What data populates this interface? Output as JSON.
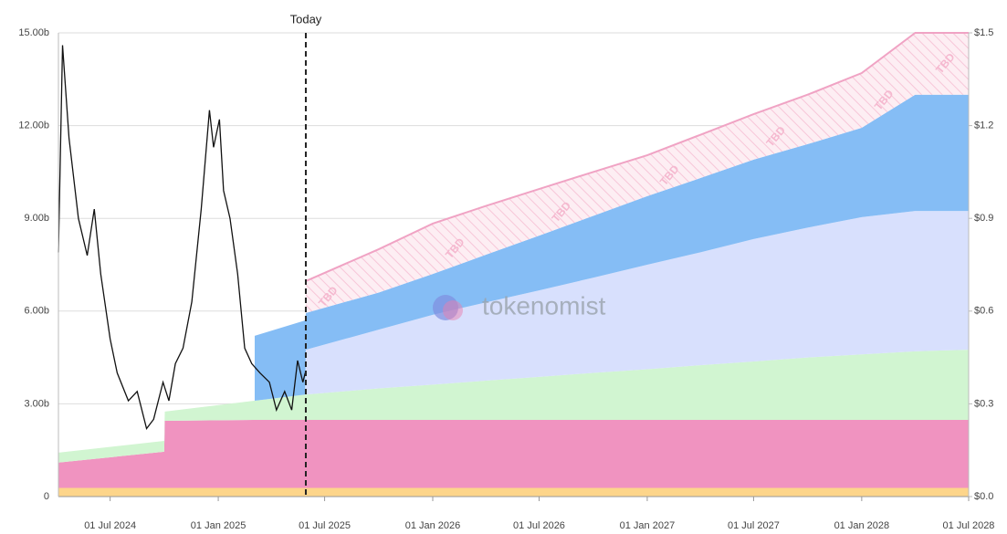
{
  "chart_data": {
    "type": "area",
    "stacked": true,
    "x": [
      "2024-04-04",
      "2024-10-01",
      "2024-10-02",
      "2025-03-03",
      "2025-03-04",
      "2025-05-29",
      "2025-05-30",
      "2025-10-01",
      "2026-01-01",
      "2026-04-01",
      "2026-07-01",
      "2026-10-01",
      "2027-01-01",
      "2027-04-01",
      "2027-07-01",
      "2027-10-01",
      "2028-01-01",
      "2028-04-01",
      "2028-07-01"
    ],
    "series": [
      {
        "color": "#fdd58a",
        "values": [
          0.28,
          0.28,
          0.28,
          0.28,
          0.28,
          0.28,
          0.28,
          0.28,
          0.28,
          0.28,
          0.28,
          0.28,
          0.28,
          0.28,
          0.28,
          0.28,
          0.28,
          0.28,
          0.28
        ]
      },
      {
        "color": "#f093c0",
        "values": [
          0.82,
          1.17,
          2.17,
          2.2,
          2.2,
          2.2,
          2.2,
          2.2,
          2.2,
          2.2,
          2.2,
          2.2,
          2.2,
          2.2,
          2.2,
          2.2,
          2.2,
          2.2,
          2.2
        ]
      },
      {
        "color": "#d1f5d1",
        "values": [
          0.32,
          0.35,
          0.3,
          0.62,
          0.62,
          0.82,
          0.82,
          1.02,
          1.14,
          1.27,
          1.39,
          1.52,
          1.64,
          1.77,
          1.89,
          2.02,
          2.12,
          2.22,
          2.27
        ]
      },
      {
        "color": "#d8e0fd",
        "values": [
          null,
          null,
          null,
          null,
          null,
          null,
          1.45,
          1.9,
          2.26,
          2.53,
          2.8,
          3.08,
          3.38,
          3.65,
          3.96,
          4.2,
          4.44,
          4.54,
          4.49
        ]
      },
      {
        "color": "#85bdf5",
        "values": [
          null,
          null,
          null,
          null,
          2.1,
          2.4,
          1.19,
          1.2,
          1.32,
          1.54,
          1.77,
          2.0,
          2.22,
          2.4,
          2.57,
          2.7,
          2.89,
          3.76,
          3.76
        ]
      },
      {
        "color": "#fde6ee",
        "pattern": "hatch",
        "stroke": "#f0a3c4",
        "values": [
          null,
          null,
          null,
          null,
          null,
          null,
          1.03,
          1.4,
          1.63,
          1.58,
          1.51,
          1.42,
          1.32,
          1.4,
          1.47,
          1.6,
          1.77,
          2.0,
          2.0
        ]
      },
      {
        "type": "line",
        "axis": "y2",
        "color": "#111111",
        "x": [
          "2024-04-04",
          "2024-04-11",
          "2024-04-22",
          "2024-05-08",
          "2024-05-23",
          "2024-06-04",
          "2024-06-15",
          "2024-07-01",
          "2024-07-13",
          "2024-08-01",
          "2024-08-16",
          "2024-09-01",
          "2024-09-13",
          "2024-09-29",
          "2024-10-09",
          "2024-10-20",
          "2024-11-02",
          "2024-11-17",
          "2024-12-03",
          "2024-12-17",
          "2024-12-24",
          "2025-01-03",
          "2025-01-10",
          "2025-01-21",
          "2025-02-03",
          "2025-02-15",
          "2025-02-27",
          "2025-03-13",
          "2025-03-29",
          "2025-04-10",
          "2025-04-24",
          "2025-05-06",
          "2025-05-16",
          "2025-05-25",
          "2025-05-29"
        ],
        "values": [
          0.79,
          1.46,
          1.16,
          0.9,
          0.78,
          0.93,
          0.72,
          0.51,
          0.4,
          0.31,
          0.34,
          0.22,
          0.25,
          0.37,
          0.31,
          0.43,
          0.48,
          0.63,
          0.93,
          1.25,
          1.13,
          1.22,
          0.99,
          0.9,
          0.72,
          0.48,
          0.43,
          0.4,
          0.37,
          0.28,
          0.34,
          0.28,
          0.44,
          0.37,
          0.4
        ]
      }
    ],
    "xlim": [
      "2024-04-04",
      "2028-07-01"
    ],
    "xticks": [
      {
        "value": "2024-07-01",
        "label": "01 Jul 2024"
      },
      {
        "value": "2025-01-01",
        "label": "01 Jan 2025"
      },
      {
        "value": "2025-07-01",
        "label": "01 Jul 2025"
      },
      {
        "value": "2026-01-01",
        "label": "01 Jan 2026"
      },
      {
        "value": "2026-07-01",
        "label": "01 Jul 2026"
      },
      {
        "value": "2027-01-01",
        "label": "01 Jan 2027"
      },
      {
        "value": "2027-07-01",
        "label": "01 Jul 2027"
      },
      {
        "value": "2028-01-01",
        "label": "01 Jan 2028"
      },
      {
        "value": "2028-07-01",
        "label": "01 Jul 2028"
      }
    ],
    "ylim": [
      0,
      15
    ],
    "yticks": [
      0,
      {
        "value": 3,
        "label": "3.00b"
      },
      {
        "value": 6,
        "label": "6.00b"
      },
      {
        "value": 9,
        "label": "9.00b"
      },
      {
        "value": 12,
        "label": "12.00b"
      },
      {
        "value": 15,
        "label": "15.00b"
      }
    ],
    "y2lim": [
      0,
      1.5
    ],
    "y2ticks": [
      {
        "value": 0,
        "label": "$0.0"
      },
      {
        "value": 0.3,
        "label": "$0.3"
      },
      {
        "value": 0.6,
        "label": "$0.6"
      },
      {
        "value": 0.9,
        "label": "$0.9"
      },
      {
        "value": 1.2,
        "label": "$1.2"
      },
      {
        "value": 1.5,
        "label": "$1.5"
      }
    ],
    "grid": true,
    "annotations": [
      {
        "x": "2025-05-30",
        "text": "Today"
      }
    ],
    "hatch_label": "TBD",
    "watermark": "tokenomist"
  }
}
